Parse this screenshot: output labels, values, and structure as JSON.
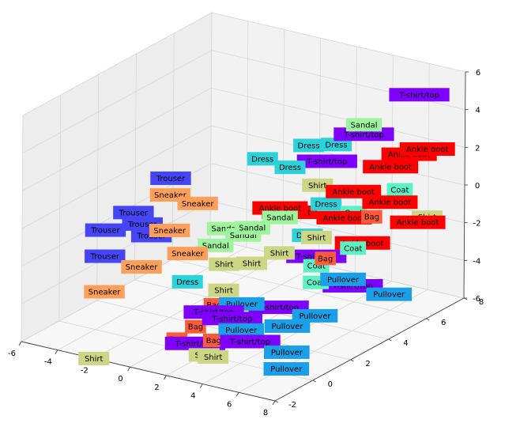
{
  "chart_data": {
    "type": "scatter",
    "projection": "3d",
    "grid": true,
    "legend": "none",
    "axes": {
      "x": {
        "range": [
          -6,
          8
        ],
        "ticks": [
          -6,
          -4,
          -2,
          0,
          2,
          4,
          6,
          8
        ]
      },
      "y": {
        "range": [
          -2,
          8
        ],
        "ticks": [
          -2,
          0,
          2,
          4,
          6,
          8
        ]
      },
      "z": {
        "range": [
          -6,
          6
        ],
        "ticks": [
          -6,
          -4,
          -2,
          0,
          2,
          4,
          6
        ]
      }
    },
    "classes": [
      {
        "name": "T-shirt/top",
        "color": "#8000ff"
      },
      {
        "name": "Trouser",
        "color": "#4545f5"
      },
      {
        "name": "Pullover",
        "color": "#1a9fe8"
      },
      {
        "name": "Dress",
        "color": "#2cd2d9"
      },
      {
        "name": "Coat",
        "color": "#5ef1c4"
      },
      {
        "name": "Sandal",
        "color": "#9ff59e"
      },
      {
        "name": "Shirt",
        "color": "#ccd786"
      },
      {
        "name": "Sneaker",
        "color": "#ff9f5c"
      },
      {
        "name": "Bag",
        "color": "#ff5a3a"
      },
      {
        "name": "Ankle boot",
        "color": "#ff0000"
      }
    ],
    "points": [
      {
        "label": "T-shirt/top",
        "x": 6.5,
        "y": 7.0,
        "z": 5.0
      },
      {
        "label": "T-shirt/top",
        "x": 4.5,
        "y": 6.0,
        "z": 3.0
      },
      {
        "label": "T-shirt/top",
        "x": 3.0,
        "y": 5.5,
        "z": 1.5
      },
      {
        "label": "T-shirt/top",
        "x": 2.0,
        "y": 0.5,
        "z": -4.0
      },
      {
        "label": "T-shirt/top",
        "x": 2.5,
        "y": 1.0,
        "z": -4.5
      },
      {
        "label": "T-shirt/top",
        "x": 3.5,
        "y": 2.5,
        "z": -4.5
      },
      {
        "label": "T-shirt/top",
        "x": 1.5,
        "y": 0.0,
        "z": -5.5
      },
      {
        "label": "T-shirt/top",
        "x": 3.5,
        "y": 1.0,
        "z": -5.5
      },
      {
        "label": "T-shirt/top",
        "x": 4.0,
        "y": 4.0,
        "z": -2.5
      },
      {
        "label": "T-shirt/top",
        "x": 5.5,
        "y": 4.5,
        "z": -4.0
      },
      {
        "label": "Ankle boot",
        "x": 8.0,
        "y": 6.0,
        "z": 3.0
      },
      {
        "label": "Ankle boot",
        "x": 7.0,
        "y": 6.0,
        "z": 2.5
      },
      {
        "label": "Ankle boot",
        "x": 6.5,
        "y": 5.5,
        "z": 2.0
      },
      {
        "label": "Ankle boot",
        "x": 5.5,
        "y": 4.5,
        "z": 1.0
      },
      {
        "label": "Ankle boot",
        "x": 7.0,
        "y": 5.0,
        "z": 0.5
      },
      {
        "label": "Ankle boot",
        "x": 2.5,
        "y": 3.5,
        "z": 0.0
      },
      {
        "label": "Ankle boot",
        "x": 2.5,
        "y": 4.0,
        "z": -0.5
      },
      {
        "label": "Ankle boot",
        "x": 5.0,
        "y": 4.5,
        "z": -0.5
      },
      {
        "label": "Ankle boot",
        "x": 7.5,
        "y": 6.0,
        "z": -1.0
      },
      {
        "label": "Ankle boot",
        "x": 5.5,
        "y": 5.0,
        "z": -2.0
      },
      {
        "label": "Dress",
        "x": 1.0,
        "y": 4.0,
        "z": 2.0
      },
      {
        "label": "Dress",
        "x": 2.5,
        "y": 5.0,
        "z": 2.5
      },
      {
        "label": "Dress",
        "x": 2.0,
        "y": 4.5,
        "z": 1.5
      },
      {
        "label": "Dress",
        "x": 3.5,
        "y": 5.5,
        "z": 2.5
      },
      {
        "label": "Dress",
        "x": 4.0,
        "y": 4.5,
        "z": 0.0
      },
      {
        "label": "Dress",
        "x": 3.5,
        "y": 4.0,
        "z": -1.5
      },
      {
        "label": "Dress",
        "x": -0.5,
        "y": 1.5,
        "z": -3.5
      },
      {
        "label": "Sandal",
        "x": 4.5,
        "y": 6.0,
        "z": 3.5
      },
      {
        "label": "Sandal",
        "x": 2.5,
        "y": 3.5,
        "z": -0.5
      },
      {
        "label": "Sandal",
        "x": 1.5,
        "y": 3.0,
        "z": -1.0
      },
      {
        "label": "Sandal",
        "x": 0.5,
        "y": 2.5,
        "z": -1.0
      },
      {
        "label": "Sandal",
        "x": 1.0,
        "y": 3.0,
        "z": -1.5
      },
      {
        "label": "Sandal",
        "x": 0.0,
        "y": 2.5,
        "z": -2.0
      },
      {
        "label": "Trouser",
        "x": -2.5,
        "y": 2.5,
        "z": 1.0
      },
      {
        "label": "Trouser",
        "x": -3.5,
        "y": 1.5,
        "z": -0.5
      },
      {
        "label": "Trouser",
        "x": -3.0,
        "y": 1.5,
        "z": -1.0
      },
      {
        "label": "Trouser",
        "x": -4.0,
        "y": 0.5,
        "z": -1.0
      },
      {
        "label": "Trouser",
        "x": -2.5,
        "y": 1.5,
        "z": -1.5
      },
      {
        "label": "Trouser",
        "x": -3.5,
        "y": 0.0,
        "z": -2.0
      },
      {
        "label": "Sneaker",
        "x": -2.0,
        "y": 2.0,
        "z": 0.5
      },
      {
        "label": "Sneaker",
        "x": -1.0,
        "y": 2.5,
        "z": 0.0
      },
      {
        "label": "Sneaker",
        "x": -1.5,
        "y": 1.5,
        "z": -1.0
      },
      {
        "label": "Sneaker",
        "x": -0.5,
        "y": 1.5,
        "z": -2.0
      },
      {
        "label": "Sneaker",
        "x": -2.0,
        "y": 0.5,
        "z": -2.5
      },
      {
        "label": "Sneaker",
        "x": -3.0,
        "y": -0.5,
        "z": -3.5
      },
      {
        "label": "Bag",
        "x": 6.0,
        "y": 5.0,
        "z": -0.5
      },
      {
        "label": "Bag",
        "x": 4.5,
        "y": 4.0,
        "z": -2.5
      },
      {
        "label": "Bag",
        "x": 1.5,
        "y": 1.0,
        "z": -4.0
      },
      {
        "label": "Bag",
        "x": 1.0,
        "y": 0.5,
        "z": -5.0
      },
      {
        "label": "Bag",
        "x": 2.0,
        "y": 0.5,
        "z": -5.5
      },
      {
        "label": "Bag",
        "x": 0.5,
        "y": 0.0,
        "z": -5.5
      },
      {
        "label": "Coat",
        "x": 6.5,
        "y": 6.0,
        "z": 0.5
      },
      {
        "label": "Coat",
        "x": 5.0,
        "y": 5.0,
        "z": -0.5
      },
      {
        "label": "Coat",
        "x": 5.5,
        "y": 4.5,
        "z": -2.0
      },
      {
        "label": "Coat",
        "x": 4.0,
        "y": 4.0,
        "z": -3.0
      },
      {
        "label": "Coat",
        "x": 4.5,
        "y": 3.5,
        "z": -3.5
      },
      {
        "label": "Shirt",
        "x": 3.0,
        "y": 5.0,
        "z": 0.5
      },
      {
        "label": "Shirt",
        "x": 7.5,
        "y": 6.5,
        "z": -1.0
      },
      {
        "label": "Shirt",
        "x": 4.0,
        "y": 4.0,
        "z": -1.5
      },
      {
        "label": "Shirt",
        "x": 3.0,
        "y": 3.0,
        "z": -2.0
      },
      {
        "label": "Shirt",
        "x": 2.0,
        "y": 2.5,
        "z": -2.5
      },
      {
        "label": "Shirt",
        "x": 1.0,
        "y": 2.0,
        "z": -2.5
      },
      {
        "label": "Shirt",
        "x": 1.5,
        "y": 1.5,
        "z": -3.5
      },
      {
        "label": "Shirt",
        "x": 2.0,
        "y": 0.0,
        "z": -6.0
      },
      {
        "label": "Shirt",
        "x": 2.5,
        "y": 0.0,
        "z": -6.0
      },
      {
        "label": "Shirt",
        "x": -2.0,
        "y": -2.0,
        "z": -6.0
      },
      {
        "label": "Pullover",
        "x": 7.5,
        "y": 4.5,
        "z": -4.0
      },
      {
        "label": "Pullover",
        "x": 6.0,
        "y": 3.5,
        "z": -3.0
      },
      {
        "label": "Pullover",
        "x": 5.5,
        "y": 2.5,
        "z": -4.5
      },
      {
        "label": "Pullover",
        "x": 4.5,
        "y": 2.0,
        "z": -5.0
      },
      {
        "label": "Pullover",
        "x": 3.0,
        "y": 1.0,
        "z": -5.0
      },
      {
        "label": "Pullover",
        "x": 2.5,
        "y": 1.5,
        "z": -4.0
      },
      {
        "label": "Pullover",
        "x": 5.0,
        "y": 1.5,
        "z": -6.0
      },
      {
        "label": "Pullover",
        "x": 5.5,
        "y": 1.0,
        "z": -6.5
      }
    ]
  }
}
